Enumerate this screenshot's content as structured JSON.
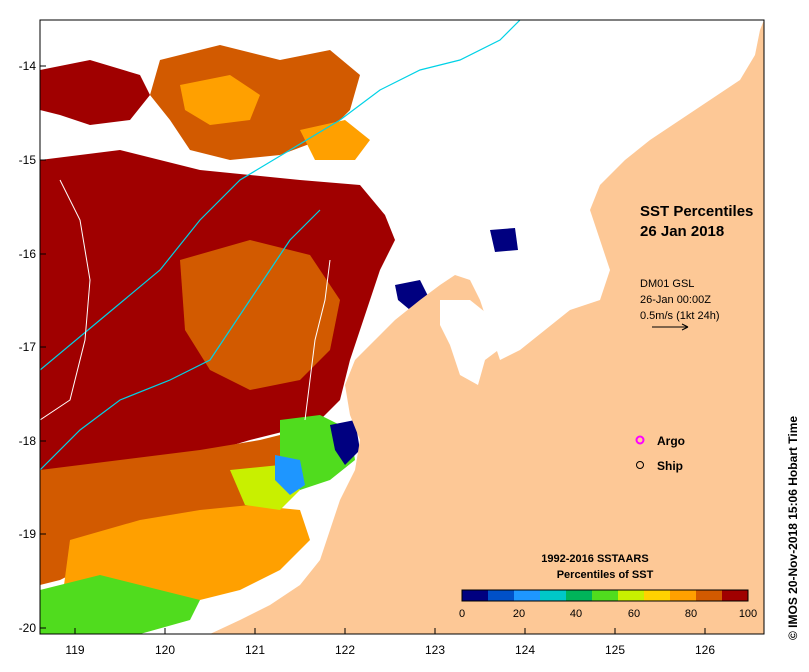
{
  "title": {
    "line1": "SST Percentiles",
    "line2": "26 Jan 2018"
  },
  "vector_legend": {
    "line1": "DM01 GSL",
    "line2": "26-Jan 00:00Z",
    "line3": "0.5m/s (1kt 24h)"
  },
  "symbols": {
    "argo_label": "Argo",
    "ship_label": "Ship",
    "argo_color": "#ff00ff",
    "ship_color": "#000000"
  },
  "colorbar": {
    "title_line1": "1992-2016 SSTAARS",
    "title_line2": "Percentiles of SST",
    "colors": [
      "#000080",
      "#0050c8",
      "#1e96ff",
      "#00c8c8",
      "#00b45a",
      "#50dc1e",
      "#c8f000",
      "#ffd200",
      "#ffa000",
      "#d25a00",
      "#a00000"
    ],
    "ticks": [
      "0",
      "20",
      "40",
      "60",
      "80",
      "100"
    ]
  },
  "axes": {
    "x_ticks": [
      "119",
      "120",
      "121",
      "122",
      "123",
      "124",
      "125",
      "126"
    ],
    "y_ticks": [
      "-14",
      "-15",
      "-16",
      "-17",
      "-18",
      "-19",
      "-20"
    ]
  },
  "credit": "© IMOS 20-Nov-2018 15:06 Hobart Time",
  "colors": {
    "land": "#fdc896",
    "no_data": "#ffffff",
    "bathymetry_200m": "#00d2e6",
    "bathymetry_deep": "#ffffff"
  }
}
